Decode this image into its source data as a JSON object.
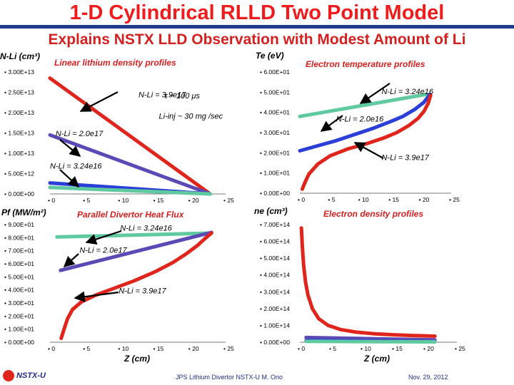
{
  "page": {
    "title": "1-D Cylindrical RLLD Two Point Model",
    "subtitle": "Explains NSTX LLD Observation with Modest Amount of Li",
    "footer_center": "JPS Lithium Divertor NSTX-U M. Ono",
    "footer_date": "Nov. 29, 2012",
    "logo_text": "NSTX-U"
  },
  "colors": {
    "accent": "#ee1c1c",
    "navy": "#1f3a8a",
    "teal": "#5fc9a0",
    "blue": "#2a3fd8",
    "purple": "#5b4ab5",
    "red": "#e0261c"
  },
  "chart_data": [
    {
      "id": "li",
      "type": "line",
      "ylabel": "N-Li (cm³)",
      "title": "Linear lithium density profiles",
      "xlim": [
        0,
        25
      ],
      "ylim": [
        0,
        30000000000000.0
      ],
      "xticks": [
        "0",
        "5",
        "10",
        "15",
        "20",
        "25"
      ],
      "yticks": [
        "0.00E+00",
        "5.00E+12",
        "1.00E+13",
        "1.50E+13",
        "2.00E+13",
        "2.50E+13",
        "3.00E+13"
      ],
      "series": [
        {
          "name": "N-Li = 3.9e17",
          "color": "#e0261c",
          "x": [
            0,
            22.8
          ],
          "y": [
            28500000000000.0,
            0
          ]
        },
        {
          "name": "N-Li = 2.0e17",
          "color": "#5b4ab5",
          "x": [
            0,
            22.8
          ],
          "y": [
            14500000000000.0,
            0
          ]
        },
        {
          "name": "N-Li = 3.24e16",
          "color": "#2a3fd8",
          "x": [
            0,
            22.8
          ],
          "y": [
            2700000000000.0,
            0
          ]
        },
        {
          "name": "",
          "color": "#5fc9a0",
          "x": [
            0,
            22.8
          ],
          "y": [
            1600000000000.0,
            0
          ]
        }
      ],
      "annotations": [
        {
          "text": "N-Li = 3.9e17",
          "x": 12.6,
          "y": 23800000000000.0
        },
        {
          "text": "N-Li = 2.0e17",
          "x": 0.8,
          "y": 14200000000000.0
        },
        {
          "text": "N-Li = 3.24e16",
          "x": 0.0,
          "y": 6200000000000.0
        },
        {
          "text": "τ ~ 100 μs",
          "x": 16.3,
          "y": 23500000000000.0
        },
        {
          "text": "Li-inj ~ 30 mg /sec",
          "x": 15.5,
          "y": 18500000000000.0
        }
      ]
    },
    {
      "id": "te",
      "type": "line",
      "ylabel": "Te (eV)",
      "title": "Electron temperature profiles",
      "xlim": [
        0,
        25
      ],
      "ylim": [
        0,
        60
      ],
      "xticks": [
        "0",
        "5",
        "10",
        "15",
        "20",
        "25"
      ],
      "yticks": [
        "0.00E+00",
        "1.00E+01",
        "2.00E+01",
        "3.00E+01",
        "4.00E+01",
        "5.00E+01",
        "6.00E+01"
      ],
      "series": [
        {
          "name": "N-Li = 3.24e16",
          "color": "#5fc9a0",
          "x": [
            0,
            21
          ],
          "y": [
            38,
            49
          ]
        },
        {
          "name": "N-Li = 2.0e16",
          "color": "#2a3fd8",
          "x": [
            0,
            3,
            6,
            9,
            12,
            15,
            17,
            19,
            20.5,
            21.5
          ],
          "y": [
            21,
            23.5,
            26,
            29,
            32,
            35.5,
            38,
            41.5,
            45,
            49
          ]
        },
        {
          "name": "N-Li = 3.9e17",
          "color": "#e0261c",
          "x": [
            0.4,
            0.8,
            1.5,
            3,
            5,
            8,
            11,
            14,
            16,
            18,
            19.5,
            20.5,
            21.2,
            21.6
          ],
          "y": [
            2,
            5,
            9.5,
            14.5,
            18.5,
            22,
            24.5,
            27.5,
            30,
            33.5,
            37,
            40.5,
            44.5,
            48.5
          ]
        }
      ],
      "annotations": [
        {
          "text": "N-Li = 3.24e16",
          "x": 13.5,
          "y": 49
        },
        {
          "text": "N-Li = 2.0e16",
          "x": 6.0,
          "y": 35.5
        },
        {
          "text": "N-Li = 3.9e17",
          "x": 13.5,
          "y": 16.5
        }
      ]
    },
    {
      "id": "pf",
      "type": "line",
      "ylabel": "Pf (MW/m²)",
      "title": "Parallel Divertor Heat Flux",
      "xlim": [
        0,
        25
      ],
      "ylim": [
        0,
        90
      ],
      "xticks": [
        "0",
        "5",
        "10",
        "15",
        "20",
        "25"
      ],
      "yticks": [
        "0.00E+00",
        "1.00E+01",
        "2.00E+01",
        "3.00E+01",
        "4.00E+01",
        "5.00E+01",
        "6.00E+01",
        "7.00E+01",
        "8.00E+01",
        "9.00E+01"
      ],
      "series": [
        {
          "name": "N-Li = 3.24e16",
          "color": "#5fc9a0",
          "x": [
            1,
            23
          ],
          "y": [
            80.5,
            83.5
          ]
        },
        {
          "name": "N-Li = 2.0e17",
          "color": "#5b4ab5",
          "x": [
            1.5,
            23
          ],
          "y": [
            55,
            84
          ]
        },
        {
          "name": "N-Li = 3.9e17",
          "color": "#e0261c",
          "x": [
            1.6,
            2,
            2.5,
            3.2,
            4.5,
            6.5,
            9,
            12,
            15,
            17.5,
            19.5,
            21,
            22,
            23
          ],
          "y": [
            3,
            10,
            18,
            25,
            31,
            36,
            41,
            47,
            54,
            61,
            68,
            74,
            79,
            83.5
          ]
        }
      ],
      "annotations": [
        {
          "text": "N-Li = 3.24e16",
          "x": 10.0,
          "y": 85.5
        },
        {
          "text": "N-Li = 2.0e17",
          "x": 4.2,
          "y": 68.5
        },
        {
          "text": "N-Li = 3.9e17",
          "x": 9.8,
          "y": 37.5
        }
      ]
    },
    {
      "id": "ne",
      "type": "line",
      "ylabel": "ne (cm³)",
      "title": "Electron density profiles",
      "xlim": [
        0,
        25
      ],
      "ylim": [
        0,
        700000000000000.0
      ],
      "xticks": [
        "0",
        "5",
        "10",
        "15",
        "20",
        "25"
      ],
      "yticks": [
        "0.00E+00",
        "1.00E+14",
        "2.00E+14",
        "3.00E+14",
        "4.00E+14",
        "5.00E+14",
        "6.00E+14",
        "7.00E+14"
      ],
      "series": [
        {
          "name": "",
          "color": "#e0261c",
          "x": [
            0.25,
            0.4,
            0.6,
            0.9,
            1.3,
            2,
            3,
            4.5,
            6.5,
            9,
            12,
            15,
            18,
            21.5
          ],
          "y": [
            680000000000000.0,
            570000000000000.0,
            460000000000000.0,
            360000000000000.0,
            280000000000000.0,
            200000000000000.0,
            140000000000000.0,
            100000000000000.0,
            75000000000000.0,
            60000000000000.0,
            50000000000000.0,
            44000000000000.0,
            40000000000000.0,
            36000000000000.0
          ]
        },
        {
          "name": "",
          "color": "#5b4ab5",
          "x": [
            1,
            21.5
          ],
          "y": [
            28000000000000.0,
            14000000000000.0
          ]
        },
        {
          "name": "",
          "color": "#2a3fd8",
          "x": [
            1,
            21.5
          ],
          "y": [
            10000000000000.0,
            3000000000000.0
          ]
        },
        {
          "name": "",
          "color": "#5fc9a0",
          "x": [
            1,
            21.5
          ],
          "y": [
            5000000000000.0,
            2000000000000.0
          ]
        }
      ]
    }
  ],
  "bottom_xlabels": [
    "Z (cm)",
    "Z (cm)"
  ]
}
